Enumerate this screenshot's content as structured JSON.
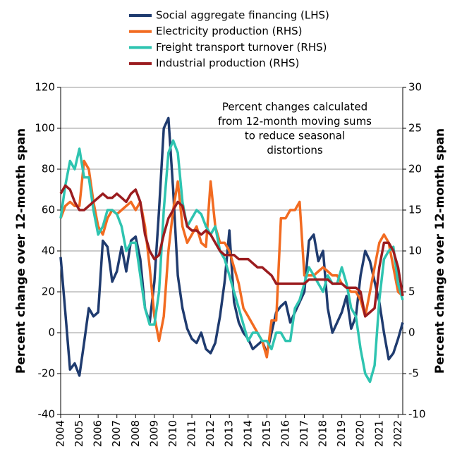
{
  "chart_data": {
    "type": "line",
    "x": [
      2004,
      2004.25,
      2004.5,
      2004.75,
      2005,
      2005.25,
      2005.5,
      2005.75,
      2006,
      2006.25,
      2006.5,
      2006.75,
      2007,
      2007.25,
      2007.5,
      2007.75,
      2008,
      2008.25,
      2008.5,
      2008.75,
      2009,
      2009.25,
      2009.5,
      2009.75,
      2010,
      2010.25,
      2010.5,
      2010.75,
      2011,
      2011.25,
      2011.5,
      2011.75,
      2012,
      2012.25,
      2012.5,
      2012.75,
      2013,
      2013.25,
      2013.5,
      2013.75,
      2014,
      2014.25,
      2014.5,
      2014.75,
      2015,
      2015.25,
      2015.5,
      2015.75,
      2016,
      2016.25,
      2016.5,
      2016.75,
      2017,
      2017.25,
      2017.5,
      2017.75,
      2018,
      2018.25,
      2018.5,
      2018.75,
      2019,
      2019.25,
      2019.5,
      2019.75,
      2020,
      2020.25,
      2020.5,
      2020.75,
      2021,
      2021.25,
      2021.5,
      2021.75,
      2022,
      2022.25
    ],
    "series": [
      {
        "name": "Social aggregate financing (LHS)",
        "color": "#1f3b6f",
        "axis": "y",
        "values": [
          37,
          10,
          -18,
          -15,
          -21,
          -5,
          12,
          8,
          10,
          45,
          42,
          25,
          30,
          42,
          30,
          45,
          47,
          36,
          12,
          5,
          25,
          60,
          100,
          105,
          70,
          28,
          12,
          2,
          -3,
          -5,
          0,
          -8,
          -10,
          -5,
          8,
          25,
          50,
          15,
          5,
          0,
          -3,
          -8,
          -6,
          -4,
          -10,
          0,
          10,
          13,
          15,
          5,
          10,
          15,
          20,
          45,
          48,
          35,
          40,
          12,
          0,
          5,
          10,
          18,
          2,
          8,
          28,
          40,
          35,
          25,
          15,
          0,
          -13,
          -10,
          -3,
          5
        ]
      },
      {
        "name": "Electricity production (RHS)",
        "color": "#f26b21",
        "axis": "y2",
        "values": [
          14,
          15.5,
          16,
          15.5,
          15.5,
          21,
          20,
          16,
          13,
          12,
          14,
          15,
          14.5,
          15,
          15.5,
          16,
          15,
          16,
          13,
          8,
          2,
          -1,
          2,
          10,
          15,
          18.5,
          13,
          11,
          12,
          13,
          11,
          10.5,
          18.5,
          13,
          11,
          11,
          10,
          8,
          6,
          3,
          2,
          1,
          0,
          -1,
          -3,
          1.5,
          1.5,
          14,
          14,
          15,
          15,
          16,
          7,
          7,
          7,
          7.5,
          8,
          7.5,
          7,
          7,
          6,
          5.5,
          5,
          5,
          4,
          2,
          5,
          8,
          11,
          12,
          11,
          8,
          5,
          4.5
        ]
      },
      {
        "name": "Freight transport turnover (RHS)",
        "color": "#2ec4b0",
        "axis": "y2",
        "values": [
          14,
          18,
          21,
          20,
          22.5,
          19,
          19,
          15,
          12,
          13,
          15,
          15,
          14.5,
          13,
          10,
          11,
          11,
          7,
          3,
          1,
          1,
          5,
          15,
          22,
          23.5,
          22,
          16,
          13,
          14,
          15,
          14.5,
          13,
          12,
          13,
          10,
          9,
          7,
          5,
          3,
          1,
          -1,
          0,
          0,
          -1,
          -1,
          -2,
          0,
          0,
          -1,
          -1,
          3,
          4,
          6,
          8,
          7,
          6,
          5,
          7,
          6,
          6,
          8,
          6,
          3,
          2,
          -2,
          -5,
          -6,
          -4,
          4,
          9,
          10,
          10.5,
          6,
          4
        ]
      },
      {
        "name": "Industrial production (RHS)",
        "color": "#9b1c1f",
        "axis": "y2",
        "values": [
          17,
          18,
          17.5,
          16,
          15,
          15,
          15.5,
          16,
          16.5,
          17,
          16.5,
          16.5,
          17,
          16.5,
          16,
          17,
          17.5,
          16,
          12,
          10,
          9,
          9.5,
          12,
          14,
          15,
          16,
          15.5,
          13,
          12.5,
          12.5,
          12,
          12.5,
          12,
          11,
          10,
          9.5,
          9.5,
          9.5,
          9,
          9,
          9,
          8.5,
          8,
          8,
          7.5,
          7,
          6,
          6,
          6,
          6,
          6,
          6,
          6,
          6.5,
          6.5,
          6.5,
          6.5,
          6.5,
          6,
          6,
          6,
          5.5,
          5.5,
          5.5,
          5,
          2,
          2.5,
          3,
          8,
          11,
          11,
          10,
          8,
          4.5
        ]
      }
    ],
    "xlim": [
      2004,
      2022.25
    ],
    "xticks": [
      2004,
      2005,
      2006,
      2007,
      2008,
      2009,
      2010,
      2011,
      2012,
      2013,
      2014,
      2015,
      2016,
      2017,
      2018,
      2019,
      2020,
      2021,
      2022
    ],
    "ylim": [
      -40,
      120
    ],
    "yticks": [
      -40,
      -20,
      0,
      20,
      40,
      60,
      80,
      100,
      120
    ],
    "y2lim": [
      -10,
      30
    ],
    "y2ticks": [
      -10,
      -5,
      0,
      5,
      10,
      15,
      20,
      25,
      30
    ],
    "ylabel": "Percent change over 12-month span",
    "y2label": "Percent change over 12-month span",
    "annotation": [
      "Percent changes calculated",
      "from 12-month moving sums",
      "to reduce seasonal",
      "distortions"
    ],
    "grid": true,
    "legend": "top"
  }
}
